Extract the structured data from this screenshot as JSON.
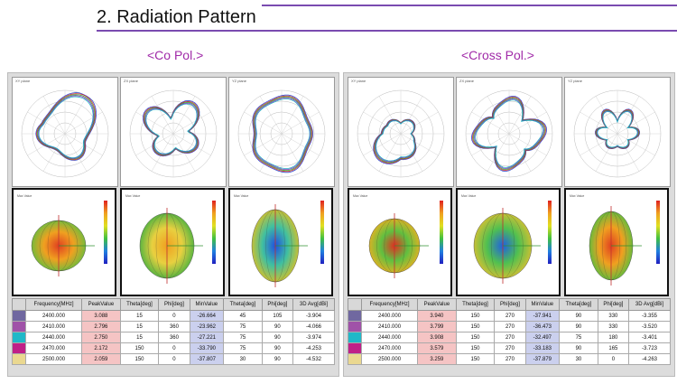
{
  "page": {
    "title": "2. Radiation Pattern",
    "co_title": "<Co Pol.>",
    "cross_title": "<Cross Pol.>"
  },
  "table_headers": [
    "Frequency[MHz]",
    "PeakValue",
    "Theta[deg]",
    "Phi[deg]",
    "MinValue",
    "Theta[deg]",
    "Phi[deg]",
    "3D Avg[dBi]"
  ],
  "swatch_colors": [
    "#7068a0",
    "#a052a8",
    "#20b8c8",
    "#c02088",
    "#ead890"
  ],
  "trace_colors": [
    "#3050d0",
    "#d03030",
    "#30a830",
    "#8030c0",
    "#20b0c0"
  ],
  "co_table": [
    [
      "2400.000",
      "3.088",
      "15",
      "0",
      "-26.664",
      "45",
      "105",
      "-3.904"
    ],
    [
      "2410.000",
      "2.796",
      "15",
      "360",
      "-23.962",
      "75",
      "90",
      "-4.066"
    ],
    [
      "2440.000",
      "2.750",
      "15",
      "360",
      "-27.221",
      "75",
      "90",
      "-3.974"
    ],
    [
      "2470.000",
      "2.172",
      "150",
      "0",
      "-33.790",
      "75",
      "90",
      "-4.253"
    ],
    [
      "2500.000",
      "2.059",
      "150",
      "0",
      "-37.807",
      "30",
      "90",
      "-4.532"
    ]
  ],
  "cross_table": [
    [
      "2400.000",
      "3.940",
      "150",
      "270",
      "-37.941",
      "90",
      "330",
      "-3.355"
    ],
    [
      "2410.000",
      "3.799",
      "150",
      "270",
      "-36.473",
      "90",
      "330",
      "-3.520"
    ],
    [
      "2440.000",
      "3.908",
      "150",
      "270",
      "-32.497",
      "75",
      "180",
      "-3.401"
    ],
    [
      "2470.000",
      "3.579",
      "150",
      "270",
      "-33.183",
      "90",
      "165",
      "-3.723"
    ],
    [
      "2500.000",
      "3.259",
      "150",
      "270",
      "-37.879",
      "30",
      "0",
      "-4.263"
    ]
  ]
}
